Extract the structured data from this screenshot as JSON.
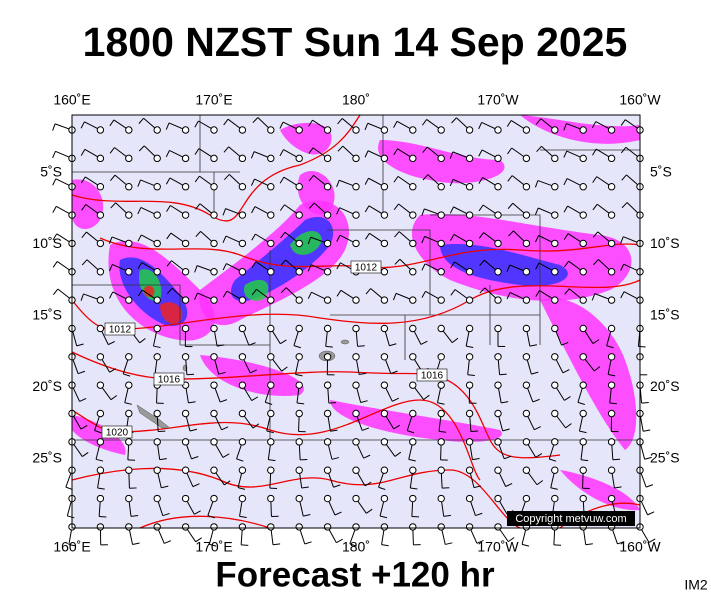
{
  "header": {
    "title": "1800 NZST Sun 14 Sep 2025"
  },
  "map": {
    "lon_labels": [
      "160˚E",
      "170˚E",
      "180˚",
      "170˚W",
      "160˚W"
    ],
    "lat_labels": [
      "5˚S",
      "10˚S",
      "15˚S",
      "20˚S",
      "25˚S"
    ],
    "isobar_labels": [
      "1012",
      "1012",
      "1016",
      "1016",
      "1020"
    ],
    "copyright": "Copyright metvuw.com"
  },
  "footer": {
    "forecast": "Forecast +120 hr",
    "image_id": "IM2"
  }
}
